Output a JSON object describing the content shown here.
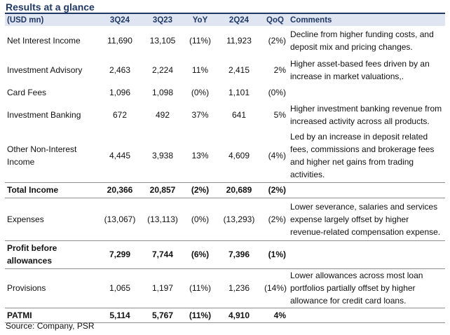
{
  "title": "Results at a glance",
  "columns": {
    "label": "(USD mn)",
    "c1": "3Q24",
    "c2": "3Q23",
    "c3": "YoY",
    "c4": "2Q24",
    "c5": "QoQ",
    "c6": "Comments"
  },
  "rows": [
    {
      "label": "Net Interest Income",
      "q3_24": "11,690",
      "q3_23": "13,105",
      "yoy": "(11%)",
      "q2_24": "11,923",
      "qoq": "(2%)",
      "comment": "Decline from higher funding costs, and deposit mix and pricing changes."
    },
    {
      "label": "Investment Advisory",
      "q3_24": "2,463",
      "q3_23": "2,224",
      "yoy": "11%",
      "q2_24": "2,415",
      "qoq": "2%",
      "comment": "Higher asset-based fees driven by an increase in market valuations,."
    },
    {
      "label": "Card Fees",
      "q3_24": "1,096",
      "q3_23": "1,098",
      "yoy": "(0%)",
      "q2_24": "1,101",
      "qoq": "(0%)",
      "comment": ""
    },
    {
      "label": "Investment Banking",
      "q3_24": "672",
      "q3_23": "492",
      "yoy": "37%",
      "q2_24": "641",
      "qoq": "5%",
      "comment": "Higher investment banking revenue from increased activity across all products."
    },
    {
      "label": "Other Non-Interest Income",
      "q3_24": "4,445",
      "q3_23": "3,938",
      "yoy": "13%",
      "q2_24": "4,609",
      "qoq": "(4%)",
      "comment": "Led by an increase in deposit related fees, commissions and brokerage fees and higher net gains from trading activities."
    },
    {
      "label": "Total Income",
      "q3_24": "20,366",
      "q3_23": "20,857",
      "yoy": "(2%)",
      "q2_24": "20,689",
      "qoq": "(2%)",
      "comment": ""
    },
    {
      "label": "Expenses",
      "q3_24": "(13,067)",
      "q3_23": "(13,113)",
      "yoy": "(0%)",
      "q2_24": "(13,293)",
      "qoq": "(2%)",
      "comment": "Lower severance, salaries and services expense largely offset by higher revenue-related compensation expense."
    },
    {
      "label": "Profit before allowances",
      "q3_24": "7,299",
      "q3_23": "7,744",
      "yoy": "(6%)",
      "q2_24": "7,396",
      "qoq": "(1%)",
      "comment": ""
    },
    {
      "label": "Provisions",
      "q3_24": "1,065",
      "q3_23": "1,197",
      "yoy": "(11%)",
      "q2_24": "1,236",
      "qoq": "(14%)",
      "comment": "Lower allowances across most loan portfolios partially offset by higher allowance for credit card loans."
    },
    {
      "label": "PATMI",
      "q3_24": "5,114",
      "q3_23": "5,767",
      "yoy": "(11%)",
      "q2_24": "4,910",
      "qoq": "4%",
      "comment": ""
    }
  ],
  "source": "Source: Company, PSR"
}
